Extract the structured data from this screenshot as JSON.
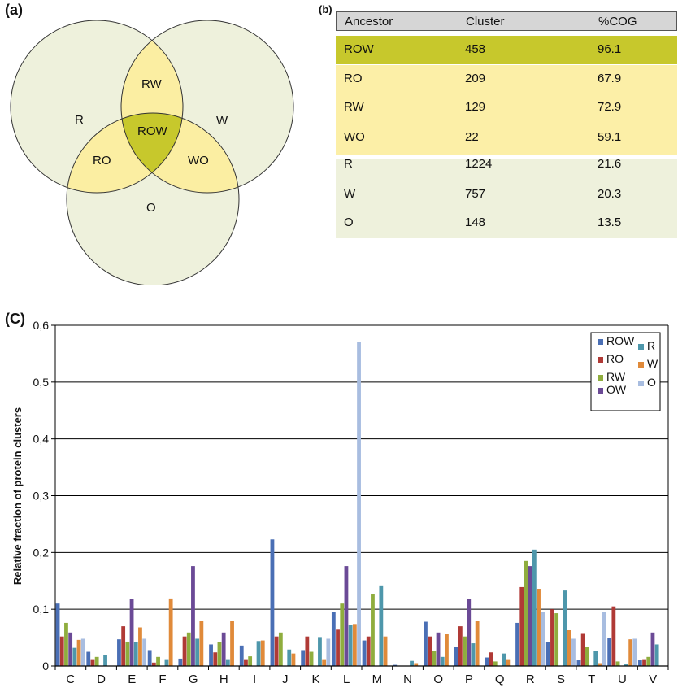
{
  "panels": {
    "a": "(a)",
    "b": "(b)",
    "c": "(C)"
  },
  "venn": {
    "labels": {
      "R": "R",
      "W": "W",
      "O": "O",
      "RW": "RW",
      "RO": "RO",
      "WO": "WO",
      "ROW": "ROW"
    },
    "colors": {
      "single": "#eef1dc",
      "pair": "#fbeea2",
      "triple": "#c7c82c"
    }
  },
  "table": {
    "headers": [
      "Ancestor",
      "Cluster",
      "%COG"
    ],
    "rows": [
      {
        "ancestor": "ROW",
        "cluster": "458",
        "cog": "96.1",
        "group": "triple"
      },
      {
        "ancestor": "RO",
        "cluster": "209",
        "cog": "67.9",
        "group": "pair"
      },
      {
        "ancestor": "RW",
        "cluster": "129",
        "cog": "72.9",
        "group": "pair"
      },
      {
        "ancestor": "WO",
        "cluster": "22",
        "cog": "59.1",
        "group": "pair"
      },
      {
        "ancestor": "R",
        "cluster": "1224",
        "cog": "21.6",
        "group": "single"
      },
      {
        "ancestor": "W",
        "cluster": "757",
        "cog": "20.3",
        "group": "single"
      },
      {
        "ancestor": "O",
        "cluster": "148",
        "cog": "13.5",
        "group": "single"
      }
    ],
    "colors": {
      "triple": "#c7c82c",
      "pair": "#fcefa7",
      "single": "#eef1dc",
      "header": "#d6d6d6"
    }
  },
  "chart_data": {
    "type": "bar",
    "ylabel": "Relative fraction of protein clusters",
    "ylim": [
      0,
      0.6
    ],
    "yticks": [
      "0",
      "0,1",
      "0,2",
      "0,3",
      "0,4",
      "0,5",
      "0,6"
    ],
    "grid": true,
    "legend_position": "top-right",
    "categories": [
      "C",
      "D",
      "E",
      "F",
      "G",
      "H",
      "I",
      "J",
      "K",
      "L",
      "M",
      "N",
      "O",
      "P",
      "Q",
      "R",
      "S",
      "T",
      "U",
      "V"
    ],
    "series": [
      {
        "name": "ROW",
        "color": "#4a6fb5",
        "values": [
          0.11,
          0.025,
          0.047,
          0.028,
          0.013,
          0.038,
          0.036,
          0.223,
          0.028,
          0.095,
          0.045,
          0.002,
          0.078,
          0.034,
          0.015,
          0.076,
          0.042,
          0.01,
          0.05,
          0.01
        ]
      },
      {
        "name": "RO",
        "color": "#b03a36",
        "values": [
          0.052,
          0.012,
          0.07,
          0.006,
          0.052,
          0.024,
          0.012,
          0.052,
          0.052,
          0.064,
          0.052,
          0.0,
          0.052,
          0.07,
          0.024,
          0.139,
          0.1,
          0.058,
          0.105,
          0.012
        ]
      },
      {
        "name": "RW",
        "color": "#8fad3e",
        "values": [
          0.076,
          0.016,
          0.043,
          0.016,
          0.059,
          0.042,
          0.017,
          0.059,
          0.025,
          0.11,
          0.126,
          0.0,
          0.026,
          0.052,
          0.008,
          0.185,
          0.093,
          0.034,
          0.008,
          0.016
        ]
      },
      {
        "name": "OW",
        "color": "#6b4a96",
        "values": [
          0.059,
          0.0,
          0.118,
          0.0,
          0.176,
          0.059,
          0.0,
          0.0,
          0.0,
          0.176,
          0.0,
          0.0,
          0.059,
          0.118,
          0.0,
          0.176,
          0.0,
          0.0,
          0.0,
          0.059
        ]
      },
      {
        "name": "R",
        "color": "#4e97ab",
        "values": [
          0.032,
          0.019,
          0.042,
          0.012,
          0.048,
          0.012,
          0.044,
          0.029,
          0.051,
          0.073,
          0.142,
          0.009,
          0.016,
          0.04,
          0.022,
          0.205,
          0.133,
          0.026,
          0.004,
          0.038
        ]
      },
      {
        "name": "W",
        "color": "#e08a3a",
        "values": [
          0.046,
          0.0,
          0.068,
          0.119,
          0.08,
          0.08,
          0.045,
          0.022,
          0.012,
          0.074,
          0.052,
          0.005,
          0.057,
          0.08,
          0.012,
          0.136,
          0.063,
          0.005,
          0.047,
          0.0
        ]
      },
      {
        "name": "O",
        "color": "#a8bde0",
        "values": [
          0.048,
          0.0,
          0.048,
          0.0,
          0.0,
          0.0,
          0.0,
          0.0,
          0.048,
          0.571,
          0.0,
          0.0,
          0.0,
          0.0,
          0.0,
          0.095,
          0.048,
          0.095,
          0.048,
          0.0
        ]
      }
    ]
  }
}
